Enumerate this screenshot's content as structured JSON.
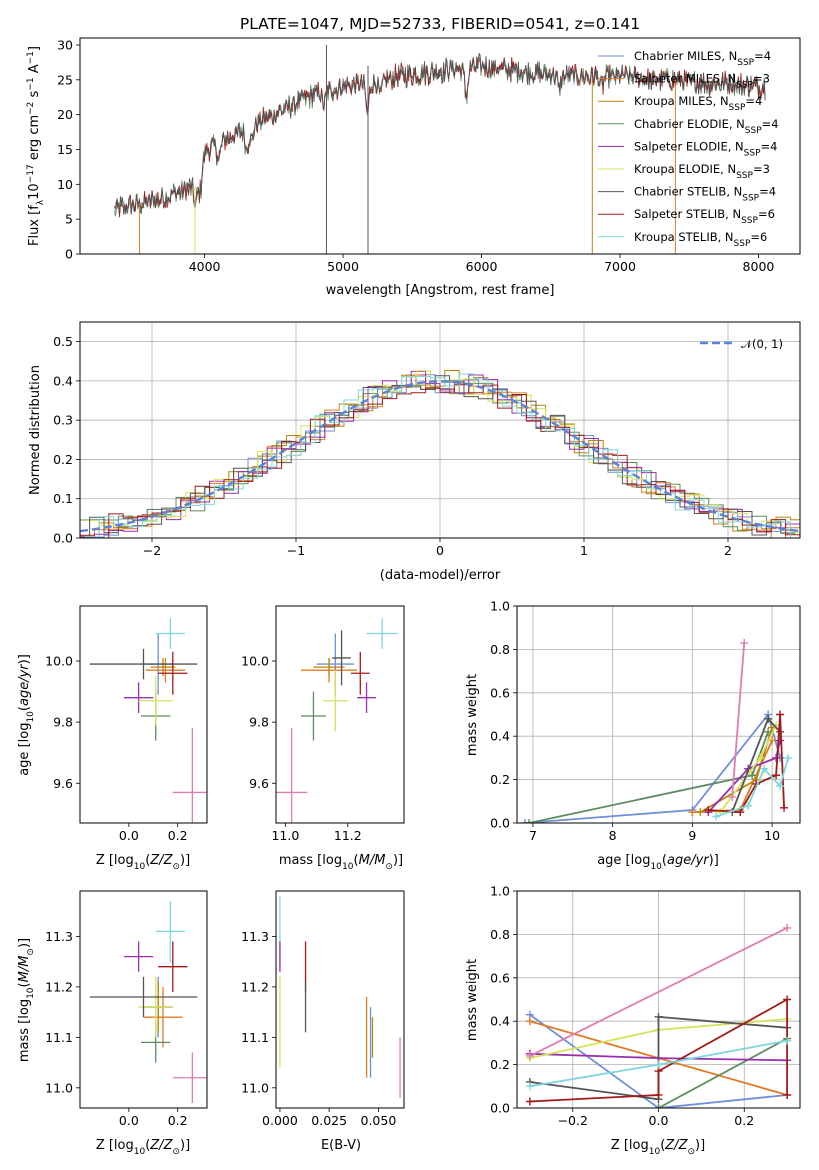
{
  "title": "PLATE=1047, MJD=52733, FIBERID=0541, z=0.141",
  "colors": {
    "Chabrier MILES": "#6f8fd6",
    "Salpeter MILES": "#e07b26",
    "Kroupa MILES": "#b8860b",
    "Chabrier ELODIE": "#5e8c5e",
    "Salpeter ELODIE": "#9a2fb0",
    "Kroupa ELODIE": "#d6e35a",
    "Chabrier STELIB": "#555555",
    "Salpeter STELIB": "#a11a1a",
    "Kroupa STELIB": "#7fd6dd",
    "extra": "#e07cb0",
    "normal": "#5b84d6"
  },
  "chart_data": [
    {
      "type": "line",
      "title": "PLATE=1047, MJD=52733, FIBERID=0541, z=0.141",
      "xlabel": "wavelength [Angstrom, rest frame]",
      "ylabel": "Flux [f_λ 10^-17 erg cm^-2 s^-1 A^-1]",
      "xlim": [
        3100,
        8300
      ],
      "ylim": [
        0,
        31
      ],
      "xticks": [
        "4000",
        "5000",
        "6000",
        "7000",
        "8000"
      ],
      "yticks": [
        "0",
        "5",
        "10",
        "15",
        "20",
        "25",
        "30"
      ],
      "continuum_x": [
        3350,
        3500,
        3700,
        3900,
        3950,
        4000,
        4200,
        4400,
        4600,
        4800,
        5000,
        5200,
        5400,
        5600,
        5800,
        6000,
        6200,
        6400,
        6600,
        6800,
        7000,
        7200,
        7400,
        7600,
        7800,
        8000,
        8050
      ],
      "continuum_y": [
        6.5,
        7.0,
        8.0,
        9.5,
        11.5,
        14.5,
        17.0,
        19.0,
        21.0,
        23.0,
        24.0,
        24.5,
        25.5,
        26.0,
        26.5,
        27.0,
        26.5,
        26.0,
        25.5,
        25.5,
        25.5,
        25.0,
        25.0,
        24.5,
        24.5,
        24.0,
        24.0
      ],
      "legend": [
        "Chabrier MILES, N_SSP=4",
        "Salpeter MILES, N_SSP=3",
        "Kroupa MILES, N_SSP=4",
        "Chabrier ELODIE, N_SSP=4",
        "Salpeter ELODIE, N_SSP=4",
        "Kroupa ELODIE, N_SSP=3",
        "Chabrier STELIB, N_SSP=4",
        "Salpeter STELIB, N_SSP=6",
        "Kroupa STELIB, N_SSP=6"
      ],
      "legend_placement": "upper right"
    },
    {
      "type": "line",
      "xlabel": "(data-model)/error",
      "ylabel": "Normed distribution",
      "xlim": [
        -2.5,
        2.5
      ],
      "ylim": [
        0,
        0.55
      ],
      "xticks": [
        "−2",
        "−1",
        "0",
        "1",
        "2"
      ],
      "yticks": [
        "0.0",
        "0.1",
        "0.2",
        "0.3",
        "0.4",
        "0.5"
      ],
      "legend": [
        "𝒩(0, 1)"
      ],
      "legend_placement": "upper right",
      "grid": true,
      "histogram_bins": 50
    },
    {
      "type": "scatter",
      "xlabel": "Z [log10(Z/Z⊙)]",
      "ylabel": "age  [log10(age/yr)]",
      "xlim": [
        -0.2,
        0.32
      ],
      "ylim": [
        9.47,
        10.18
      ],
      "xticks": [
        "0.0",
        "0.2"
      ],
      "yticks": [
        "9.6",
        "9.8",
        "10.0"
      ],
      "points": [
        {
          "series": "Chabrier MILES",
          "x": 0.12,
          "y": 9.99,
          "xerr": 0.06,
          "yerr": 0.1
        },
        {
          "series": "Salpeter MILES",
          "x": 0.15,
          "y": 9.97,
          "xerr": 0.08,
          "yerr": 0.04
        },
        {
          "series": "Kroupa MILES",
          "x": 0.14,
          "y": 9.98,
          "xerr": 0.05,
          "yerr": 0.03
        },
        {
          "series": "Chabrier ELODIE",
          "x": 0.11,
          "y": 9.82,
          "xerr": 0.06,
          "yerr": 0.08
        },
        {
          "series": "Salpeter ELODIE",
          "x": 0.04,
          "y": 9.88,
          "xerr": 0.06,
          "yerr": 0.05
        },
        {
          "series": "Kroupa ELODIE",
          "x": 0.11,
          "y": 9.87,
          "xerr": 0.07,
          "yerr": 0.08
        },
        {
          "series": "Chabrier STELIB",
          "x": 0.06,
          "y": 9.99,
          "xerr": 0.22,
          "yerr": 0.05
        },
        {
          "series": "Salpeter STELIB",
          "x": 0.18,
          "y": 9.96,
          "xerr": 0.06,
          "yerr": 0.07
        },
        {
          "series": "Kroupa STELIB",
          "x": 0.17,
          "y": 10.09,
          "xerr": 0.06,
          "yerr": 0.05
        },
        {
          "series": "extra",
          "x": 0.26,
          "y": 9.57,
          "xerr": 0.08,
          "yerr": 0.21
        }
      ]
    },
    {
      "type": "scatter",
      "xlabel": "mass [log10(M/M⊙)]",
      "ylabel": "",
      "xlim": [
        10.97,
        11.38
      ],
      "ylim": [
        9.47,
        10.18
      ],
      "xticks": [
        "11.0",
        "11.2"
      ],
      "yticks": [
        "9.6",
        "9.8",
        "10.0"
      ],
      "points": [
        {
          "series": "Chabrier MILES",
          "x": 11.16,
          "y": 9.99,
          "xerr": 0.06,
          "yerr": 0.1
        },
        {
          "series": "Salpeter MILES",
          "x": 11.14,
          "y": 9.97,
          "xerr": 0.09,
          "yerr": 0.04
        },
        {
          "series": "Kroupa MILES",
          "x": 11.14,
          "y": 9.98,
          "xerr": 0.05,
          "yerr": 0.03
        },
        {
          "series": "Chabrier ELODIE",
          "x": 11.09,
          "y": 9.82,
          "xerr": 0.04,
          "yerr": 0.08
        },
        {
          "series": "Salpeter ELODIE",
          "x": 11.26,
          "y": 9.88,
          "xerr": 0.03,
          "yerr": 0.05
        },
        {
          "series": "Kroupa ELODIE",
          "x": 11.16,
          "y": 9.87,
          "xerr": 0.04,
          "yerr": 0.1
        },
        {
          "series": "Chabrier STELIB",
          "x": 11.18,
          "y": 10.01,
          "xerr": 0.03,
          "yerr": 0.09
        },
        {
          "series": "Salpeter STELIB",
          "x": 11.24,
          "y": 9.96,
          "xerr": 0.03,
          "yerr": 0.07
        },
        {
          "series": "Kroupa STELIB",
          "x": 11.31,
          "y": 10.09,
          "xerr": 0.05,
          "yerr": 0.05
        },
        {
          "series": "extra",
          "x": 11.02,
          "y": 9.57,
          "xerr": 0.05,
          "yerr": 0.21
        }
      ]
    },
    {
      "type": "line",
      "xlabel": "age  [log10(age/yr)]",
      "ylabel": "mass weight",
      "xlim": [
        6.8,
        10.35
      ],
      "ylim": [
        0,
        1
      ],
      "xticks": [
        "7",
        "8",
        "9",
        "10"
      ],
      "yticks": [
        "0.0",
        "0.2",
        "0.4",
        "0.6",
        "0.8",
        "1.0"
      ],
      "grid": true,
      "series": [
        {
          "name": "Chabrier MILES",
          "x": [
            6.9,
            9.0,
            9.95,
            10.1
          ],
          "y": [
            0.0,
            0.06,
            0.5,
            0.3
          ]
        },
        {
          "name": "Salpeter MILES",
          "x": [
            9.0,
            9.6,
            10.0
          ],
          "y": [
            0.05,
            0.06,
            0.38
          ]
        },
        {
          "name": "Kroupa MILES",
          "x": [
            9.1,
            9.8,
            10.0
          ],
          "y": [
            0.05,
            0.2,
            0.44
          ]
        },
        {
          "name": "Chabrier ELODIE",
          "x": [
            6.95,
            9.75,
            9.95
          ],
          "y": [
            0.0,
            0.22,
            0.42
          ]
        },
        {
          "name": "Salpeter ELODIE",
          "x": [
            9.2,
            9.7,
            10.05,
            10.1
          ],
          "y": [
            0.05,
            0.25,
            0.3,
            0.38
          ]
        },
        {
          "name": "Kroupa ELODIE",
          "x": [
            9.35,
            9.85,
            10.05
          ],
          "y": [
            0.05,
            0.3,
            0.45
          ]
        },
        {
          "name": "Chabrier STELIB",
          "x": [
            9.5,
            9.95,
            10.1
          ],
          "y": [
            0.05,
            0.48,
            0.42
          ]
        },
        {
          "name": "Salpeter STELIB",
          "x": [
            9.2,
            9.6,
            9.8,
            10.05,
            10.1,
            10.15
          ],
          "y": [
            0.06,
            0.05,
            0.18,
            0.22,
            0.5,
            0.07
          ]
        },
        {
          "name": "Kroupa STELIB",
          "x": [
            9.3,
            9.7,
            9.9,
            10.1,
            10.2
          ],
          "y": [
            0.03,
            0.08,
            0.25,
            0.17,
            0.3
          ]
        },
        {
          "name": "extra",
          "x": [
            9.5,
            9.65
          ],
          "y": [
            0.12,
            0.83
          ]
        }
      ]
    },
    {
      "type": "scatter",
      "xlabel": "Z [log10(Z/Z⊙)]",
      "ylabel": "mass [log10(M/M⊙)]",
      "xlim": [
        -0.2,
        0.32
      ],
      "ylim": [
        10.96,
        11.39
      ],
      "xticks": [
        "0.0",
        "0.2"
      ],
      "yticks": [
        "11.0",
        "11.1",
        "11.2",
        "11.3"
      ],
      "points": [
        {
          "series": "Chabrier MILES",
          "x": 0.12,
          "y": 11.16,
          "xerr": 0.06,
          "yerr": 0.06
        },
        {
          "series": "Salpeter MILES",
          "x": 0.14,
          "y": 11.14,
          "xerr": 0.08,
          "yerr": 0.06
        },
        {
          "series": "Kroupa MILES",
          "x": 0.12,
          "y": 11.16,
          "xerr": 0.05,
          "yerr": 0.05
        },
        {
          "series": "Chabrier ELODIE",
          "x": 0.11,
          "y": 11.09,
          "xerr": 0.06,
          "yerr": 0.04
        },
        {
          "series": "Salpeter ELODIE",
          "x": 0.04,
          "y": 11.26,
          "xerr": 0.06,
          "yerr": 0.03
        },
        {
          "series": "Kroupa ELODIE",
          "x": 0.11,
          "y": 11.16,
          "xerr": 0.07,
          "yerr": 0.06
        },
        {
          "series": "Chabrier STELIB",
          "x": 0.06,
          "y": 11.18,
          "xerr": 0.22,
          "yerr": 0.04
        },
        {
          "series": "Salpeter STELIB",
          "x": 0.18,
          "y": 11.24,
          "xerr": 0.06,
          "yerr": 0.05
        },
        {
          "series": "Kroupa STELIB",
          "x": 0.17,
          "y": 11.31,
          "xerr": 0.06,
          "yerr": 0.06
        },
        {
          "series": "extra",
          "x": 0.26,
          "y": 11.02,
          "xerr": 0.08,
          "yerr": 0.05
        }
      ]
    },
    {
      "type": "scatter",
      "xlabel": "E(B-V)",
      "ylabel": "",
      "xlim": [
        -0.002,
        0.063
      ],
      "ylim": [
        10.96,
        11.39
      ],
      "xticks": [
        "0.000",
        "0.025",
        "0.050"
      ],
      "yticks": [
        "11.0",
        "11.1",
        "11.2",
        "11.3"
      ],
      "points": [
        {
          "series": "Kroupa STELIB",
          "x": 0.0,
          "y": 11.31,
          "xerr": 0,
          "yerr": 0.07
        },
        {
          "series": "Salpeter ELODIE",
          "x": 0.0,
          "y": 11.26,
          "xerr": 0,
          "yerr": 0.03
        },
        {
          "series": "Kroupa ELODIE",
          "x": 0.0,
          "y": 11.13,
          "xerr": 0,
          "yerr": 0.09
        },
        {
          "series": "Salpeter STELIB",
          "x": 0.013,
          "y": 11.24,
          "xerr": 0,
          "yerr": 0.05
        },
        {
          "series": "Chabrier STELIB",
          "x": 0.013,
          "y": 11.16,
          "xerr": 0,
          "yerr": 0.05
        },
        {
          "series": "Salpeter MILES",
          "x": 0.044,
          "y": 11.1,
          "xerr": 0,
          "yerr": 0.08
        },
        {
          "series": "Chabrier MILES",
          "x": 0.046,
          "y": 11.09,
          "xerr": 0,
          "yerr": 0.07
        },
        {
          "series": "Kroupa MILES",
          "x": 0.047,
          "y": 11.1,
          "xerr": 0,
          "yerr": 0.04
        },
        {
          "series": "extra",
          "x": 0.061,
          "y": 11.04,
          "xerr": 0,
          "yerr": 0.06
        }
      ]
    },
    {
      "type": "line",
      "xlabel": "Z [log10(Z/Z⊙)]",
      "ylabel": "mass weight",
      "xlim": [
        -0.33,
        0.33
      ],
      "ylim": [
        0,
        1
      ],
      "xticks": [
        "−0.2",
        "0.0",
        "0.2"
      ],
      "yticks": [
        "0.0",
        "0.2",
        "0.4",
        "0.6",
        "0.8",
        "1.0"
      ],
      "grid": true,
      "series": [
        {
          "name": "Chabrier MILES",
          "x": [
            -0.3,
            0.0,
            0.3
          ],
          "y": [
            0.43,
            0.0,
            0.06
          ]
        },
        {
          "name": "Salpeter MILES",
          "x": [
            -0.3,
            0.3
          ],
          "y": [
            0.4,
            0.06
          ]
        },
        {
          "name": "Chabrier ELODIE",
          "x": [
            0.0,
            0.3
          ],
          "y": [
            0.0,
            0.32
          ]
        },
        {
          "name": "Salpeter ELODIE",
          "x": [
            -0.3,
            0.0,
            0.3
          ],
          "y": [
            0.25,
            0.23,
            0.22
          ]
        },
        {
          "name": "Kroupa ELODIE",
          "x": [
            -0.3,
            0.0,
            0.3
          ],
          "y": [
            0.23,
            0.36,
            0.41
          ]
        },
        {
          "name": "Chabrier STELIB",
          "x": [
            -0.3,
            0.0,
            0.0,
            0.3
          ],
          "y": [
            0.12,
            0.04,
            0.42,
            0.37
          ]
        },
        {
          "name": "Salpeter STELIB",
          "x": [
            -0.3,
            0.0,
            0.0,
            0.3,
            0.3
          ],
          "y": [
            0.03,
            0.06,
            0.17,
            0.5,
            0.06
          ]
        },
        {
          "name": "Kroupa STELIB",
          "x": [
            -0.3,
            0.0,
            0.3
          ],
          "y": [
            0.1,
            0.2,
            0.31
          ]
        },
        {
          "name": "extra",
          "x": [
            -0.3,
            0.3
          ],
          "y": [
            0.24,
            0.83
          ]
        }
      ]
    }
  ]
}
